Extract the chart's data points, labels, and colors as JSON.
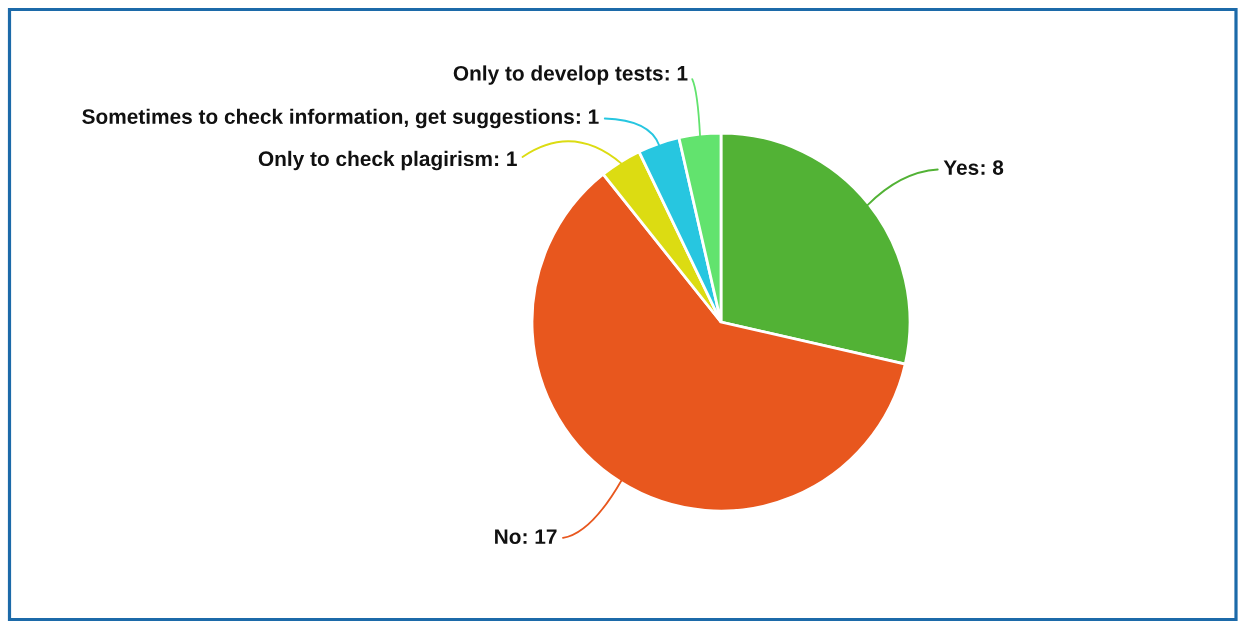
{
  "chart_data": {
    "type": "pie",
    "categories": [
      "Yes",
      "No",
      "Only to check plagirism",
      "Sometimes to check information, get suggestions",
      "Only to develop tests"
    ],
    "values": [
      8,
      17,
      1,
      1,
      1
    ],
    "value_labels": [
      ": 8",
      ": 17",
      ": 1",
      ": 1",
      ": 1"
    ],
    "colors": [
      "#52b235",
      "#e8571e",
      "#dcdc12",
      "#27c6e0",
      "#62e36e"
    ]
  }
}
